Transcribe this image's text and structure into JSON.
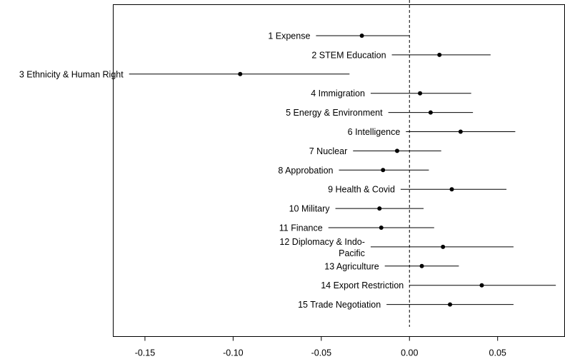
{
  "chart_data": {
    "type": "scatter",
    "subtype": "coefficient plot (point estimates with horizontal interval lines)",
    "title": "",
    "xlabel": "",
    "ylabel": "",
    "xlim": [
      -0.168,
      0.088
    ],
    "x_ticks": [
      {
        "value": -0.15,
        "label": "-0.15"
      },
      {
        "value": -0.1,
        "label": "-0.10"
      },
      {
        "value": -0.05,
        "label": "-0.05"
      },
      {
        "value": 0.0,
        "label": "0.00"
      },
      {
        "value": 0.05,
        "label": "0.05"
      }
    ],
    "reference_line": {
      "x": 0,
      "style": "dashed"
    },
    "grid": false,
    "legend": "none",
    "point_color": "#000000",
    "line_color": "#000000",
    "items": [
      {
        "label": "1 Expense",
        "estimate": -0.027,
        "lower": -0.053,
        "upper": 0.0
      },
      {
        "label": "2 STEM Education",
        "estimate": 0.017,
        "lower": -0.01,
        "upper": 0.046
      },
      {
        "label": "3 Ethnicity & Human Right",
        "estimate": -0.096,
        "lower": -0.159,
        "upper": -0.034
      },
      {
        "label": "4 Immigration",
        "estimate": 0.006,
        "lower": -0.022,
        "upper": 0.035
      },
      {
        "label": "5 Energy & Environment",
        "estimate": 0.012,
        "lower": -0.012,
        "upper": 0.036
      },
      {
        "label": "6 Intelligence",
        "estimate": 0.029,
        "lower": -0.002,
        "upper": 0.06
      },
      {
        "label": "7 Nuclear",
        "estimate": -0.007,
        "lower": -0.032,
        "upper": 0.018
      },
      {
        "label": "8 Approbation",
        "estimate": -0.015,
        "lower": -0.04,
        "upper": 0.011
      },
      {
        "label": "9 Health & Covid",
        "estimate": 0.024,
        "lower": -0.005,
        "upper": 0.055
      },
      {
        "label": "10 Military",
        "estimate": -0.017,
        "lower": -0.042,
        "upper": 0.008
      },
      {
        "label": "11 Finance",
        "estimate": -0.016,
        "lower": -0.046,
        "upper": 0.014
      },
      {
        "label": "12 Diplomacy & Indo-\nPacific",
        "estimate": 0.019,
        "lower": -0.022,
        "upper": 0.059
      },
      {
        "label": "13 Agriculture",
        "estimate": 0.007,
        "lower": -0.014,
        "upper": 0.028
      },
      {
        "label": "14 Export Restriction",
        "estimate": 0.041,
        "lower": 0.0,
        "upper": 0.083
      },
      {
        "label": "15 Trade Negotiation",
        "estimate": 0.023,
        "lower": -0.013,
        "upper": 0.059
      }
    ]
  }
}
